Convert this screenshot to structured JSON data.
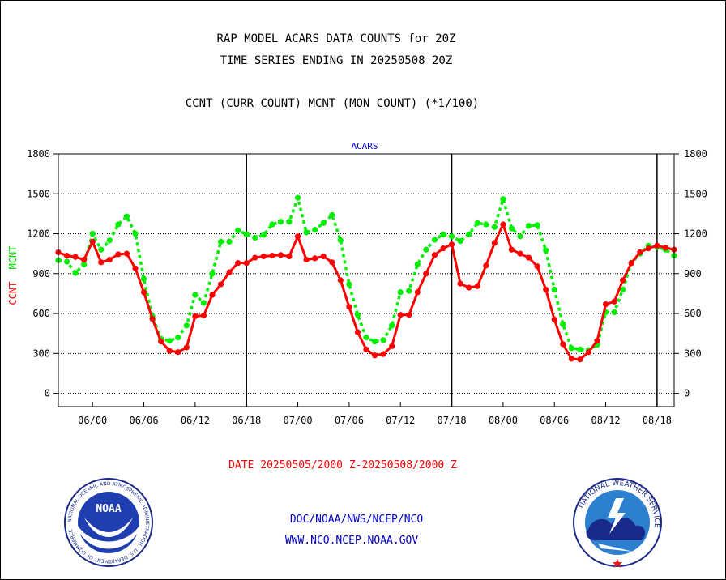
{
  "title_line1": "RAP MODEL ACARS DATA COUNTS for 20Z",
  "title_line2": "TIME SERIES ENDING IN 20250508 20Z",
  "subtitle": "CCNT (CURR COUNT) MCNT (MON COUNT) (*1/100)",
  "date_range": "DATE 20250505/2000 Z-20250508/2000 Z",
  "footer_link1": "DOC/NOAA/NWS/NCEP/NCO",
  "footer_link2": "WWW.NCO.NCEP.NOAA.GOV",
  "logos": {
    "noaa_text": "NOAA",
    "noaa_ring": "NATIONAL OCEANIC AND ATMOSPHERIC ADMINISTRATION · U.S. DEPARTMENT OF COMMERCE",
    "nws_ring": "NATIONAL WEATHER SERVICE"
  },
  "colors": {
    "ccnt": "#ff0000",
    "mcnt": "#00ee00",
    "axis": "#000000",
    "panel_label": "#0000cc",
    "footer": "#0000cc",
    "date": "#ff0000"
  },
  "chart_data": {
    "type": "line",
    "panel_label": "ACARS",
    "ylabel_left": [
      "CCNT",
      "MCNT"
    ],
    "ylim": [
      -100,
      1800
    ],
    "yticks": [
      0,
      300,
      600,
      900,
      1200,
      1500,
      1800
    ],
    "ytick_labels": [
      "0",
      "300",
      "600",
      "900",
      "1200",
      "1500",
      "1800"
    ],
    "grid": "horizontal dotted",
    "x_start_hour": 20,
    "x_end_hour": 92,
    "xtick_hours": [
      24,
      30,
      36,
      42,
      48,
      54,
      60,
      66,
      72,
      78,
      84,
      90
    ],
    "xtick_labels": [
      "06/00",
      "06/06",
      "06/12",
      "06/18",
      "07/00",
      "07/06",
      "07/12",
      "07/18",
      "08/00",
      "08/06",
      "08/12",
      "08/18"
    ],
    "day_boundaries": [
      42,
      66,
      90
    ],
    "series": [
      {
        "name": "CCNT",
        "style": "solid",
        "color": "#ff0000",
        "x": [
          20,
          21,
          22,
          23,
          24,
          25,
          26,
          27,
          28,
          29,
          30,
          31,
          32,
          33,
          34,
          35,
          36,
          37,
          38,
          39,
          40,
          41,
          42,
          43,
          44,
          45,
          46,
          47,
          48,
          49,
          50,
          51,
          52,
          53,
          54,
          55,
          56,
          57,
          58,
          59,
          60,
          61,
          62,
          63,
          64,
          65,
          66,
          67,
          68,
          69,
          70,
          71,
          72,
          73,
          74,
          75,
          76,
          77,
          78,
          79,
          80,
          81,
          82,
          83,
          84,
          85,
          86,
          87,
          88,
          89,
          90,
          91,
          92
        ],
        "values": [
          1060,
          1035,
          1025,
          1005,
          1140,
          985,
          1005,
          1045,
          1050,
          940,
          760,
          560,
          390,
          320,
          310,
          345,
          580,
          585,
          740,
          820,
          910,
          980,
          980,
          1020,
          1030,
          1035,
          1040,
          1030,
          1180,
          1005,
          1015,
          1030,
          985,
          850,
          650,
          460,
          330,
          285,
          295,
          355,
          590,
          590,
          760,
          900,
          1040,
          1090,
          1120,
          825,
          795,
          805,
          960,
          1130,
          1270,
          1080,
          1050,
          1020,
          955,
          780,
          555,
          370,
          260,
          255,
          310,
          395,
          670,
          690,
          850,
          980,
          1060,
          1090,
          1110,
          1095,
          1080
        ]
      },
      {
        "name": "MCNT",
        "style": "dotted",
        "color": "#00ee00",
        "x": [
          20,
          21,
          22,
          23,
          24,
          25,
          26,
          27,
          28,
          29,
          30,
          31,
          32,
          33,
          34,
          35,
          36,
          37,
          38,
          39,
          40,
          41,
          42,
          43,
          44,
          45,
          46,
          47,
          48,
          49,
          50,
          51,
          52,
          53,
          54,
          55,
          56,
          57,
          58,
          59,
          60,
          61,
          62,
          63,
          64,
          65,
          66,
          67,
          68,
          69,
          70,
          71,
          72,
          73,
          74,
          75,
          76,
          77,
          78,
          79,
          80,
          81,
          82,
          83,
          84,
          85,
          86,
          87,
          88,
          89,
          90,
          91,
          92
        ],
        "values": [
          1000,
          990,
          905,
          970,
          1200,
          1080,
          1150,
          1270,
          1330,
          1200,
          860,
          580,
          410,
          395,
          420,
          510,
          740,
          680,
          900,
          1140,
          1140,
          1225,
          1195,
          1170,
          1190,
          1270,
          1290,
          1290,
          1470,
          1210,
          1230,
          1280,
          1340,
          1150,
          820,
          590,
          420,
          390,
          400,
          510,
          760,
          770,
          970,
          1080,
          1155,
          1195,
          1180,
          1145,
          1195,
          1280,
          1270,
          1250,
          1460,
          1240,
          1180,
          1260,
          1265,
          1075,
          780,
          520,
          340,
          330,
          325,
          365,
          610,
          610,
          780,
          980,
          1050,
          1110,
          1100,
          1080,
          1035
        ]
      }
    ]
  }
}
